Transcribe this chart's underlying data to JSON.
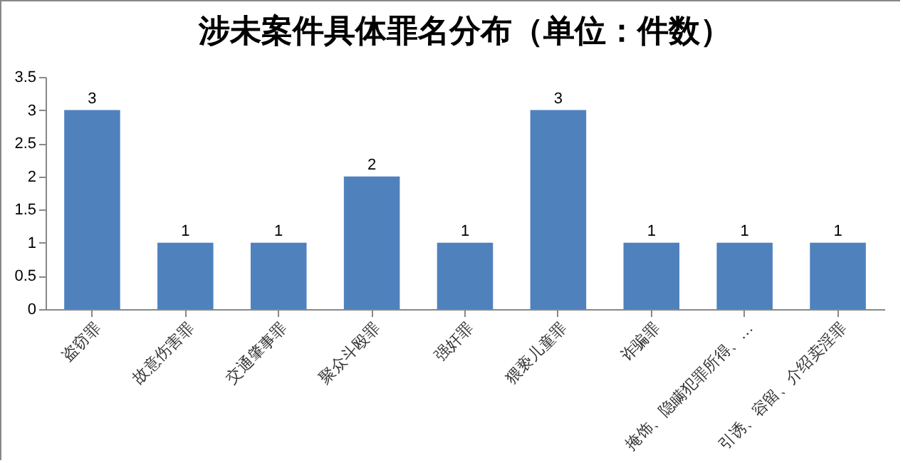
{
  "chart_data": {
    "type": "bar",
    "title": "涉未案件具体罪名分布（单位：件数）",
    "categories": [
      "盗窃罪",
      "故意伤害罪",
      "交通肇事罪",
      "聚众斗殴罪",
      "强奸罪",
      "猥亵儿童罪",
      "诈骗罪",
      "掩饰、隐瞒犯罪所得、…",
      "引诱、容留、介绍卖淫罪"
    ],
    "values": [
      3,
      1,
      1,
      2,
      1,
      3,
      1,
      1,
      1
    ],
    "color": "#4f81bd",
    "ylim": [
      0,
      3.5
    ],
    "yticks": [
      0,
      0.5,
      1,
      1.5,
      2,
      2.5,
      3,
      3.5
    ],
    "data_labels": true
  }
}
